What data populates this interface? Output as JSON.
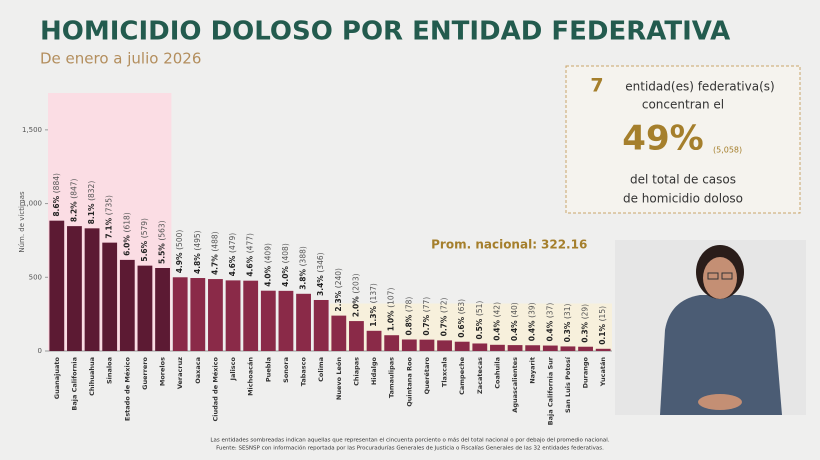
{
  "chart_data": {
    "type": "bar",
    "title": "HOMICIDIO DOLOSO POR ENTIDAD FEDERATIVA",
    "subtitle": "De enero a julio 2026",
    "y_label": "Núm. de víctimas",
    "categories": [
      "Guanajuato",
      "Baja California",
      "Chihuahua",
      "Sinaloa",
      "Estado de México",
      "Guerrero",
      "Morelos",
      "Veracruz",
      "Oaxaca",
      "Ciudad de México",
      "Jalisco",
      "Michoacán",
      "Puebla",
      "Sonora",
      "Tabasco",
      "Colima",
      "Nuevo León",
      "Chiapas",
      "Hidalgo",
      "Tamaulipas",
      "Quintana Roo",
      "Querétaro",
      "Tlaxcala",
      "Campeche",
      "Zacatecas",
      "Coahuila",
      "Aguascalientes",
      "Nayarit",
      "Baja California Sur",
      "San Luis Potosí",
      "Durango",
      "Yucatán"
    ],
    "values": [
      884,
      847,
      832,
      735,
      618,
      579,
      563,
      500,
      495,
      488,
      479,
      477,
      409,
      408,
      388,
      346,
      240,
      203,
      137,
      107,
      78,
      77,
      72,
      63,
      51,
      42,
      40,
      39,
      37,
      31,
      29,
      15
    ],
    "value_labels": [
      "8.6% (884)",
      "8.2% (847)",
      "8.1% (832)",
      "7.1% (735)",
      "6.0% (618)",
      "5.6% (579)",
      "5.5% (563)",
      "4.9% (500)",
      "4.8% (495)",
      "4.7% (488)",
      "4.6% (479)",
      "4.6% (477)",
      "4.0% (409)",
      "4.0% (408)",
      "3.8% (388)",
      "3.4% (346)",
      "2.3% (240)",
      "2.0% (203)",
      "1.3% (137)",
      "1.0% (107)",
      "0.8% (78)",
      "0.7% (77)",
      "0.7% (72)",
      "0.6% (63)",
      "0.5% (51)",
      "0.4% (42)",
      "0.4% (40)",
      "0.4% (39)",
      "0.4% (37)",
      "0.3% (31)",
      "0.3% (29)",
      "0.1% (15)"
    ],
    "colors": {
      "top": "#5c1a33",
      "rest": "#8a2a48"
    },
    "ylim": [
      0,
      1750
    ],
    "yticks": [
      0,
      500,
      {
        "value": 1000,
        "label": "1,000"
      },
      {
        "value": 1500,
        "label": "1,500"
      }
    ],
    "average": {
      "text": "Prom. nacional:",
      "value": 322.16
    },
    "summary": {
      "count": 7,
      "line1": "entidad(es) federativa(s)",
      "line2": "concentran el",
      "share": "49%",
      "total": "(5,058)",
      "line3": "del total de casos",
      "line4": "de homicidio doloso"
    },
    "notes": [
      "Las entidades sombreadas indican aquellas que representan el cincuenta porciento o más del total nacional o por debajo del promedio nacional.",
      "Fuente: SESNSP con información reportada por las Procuradurías Generales de Justicia o Fiscalías Generales de las 32 entidades federativas."
    ]
  }
}
